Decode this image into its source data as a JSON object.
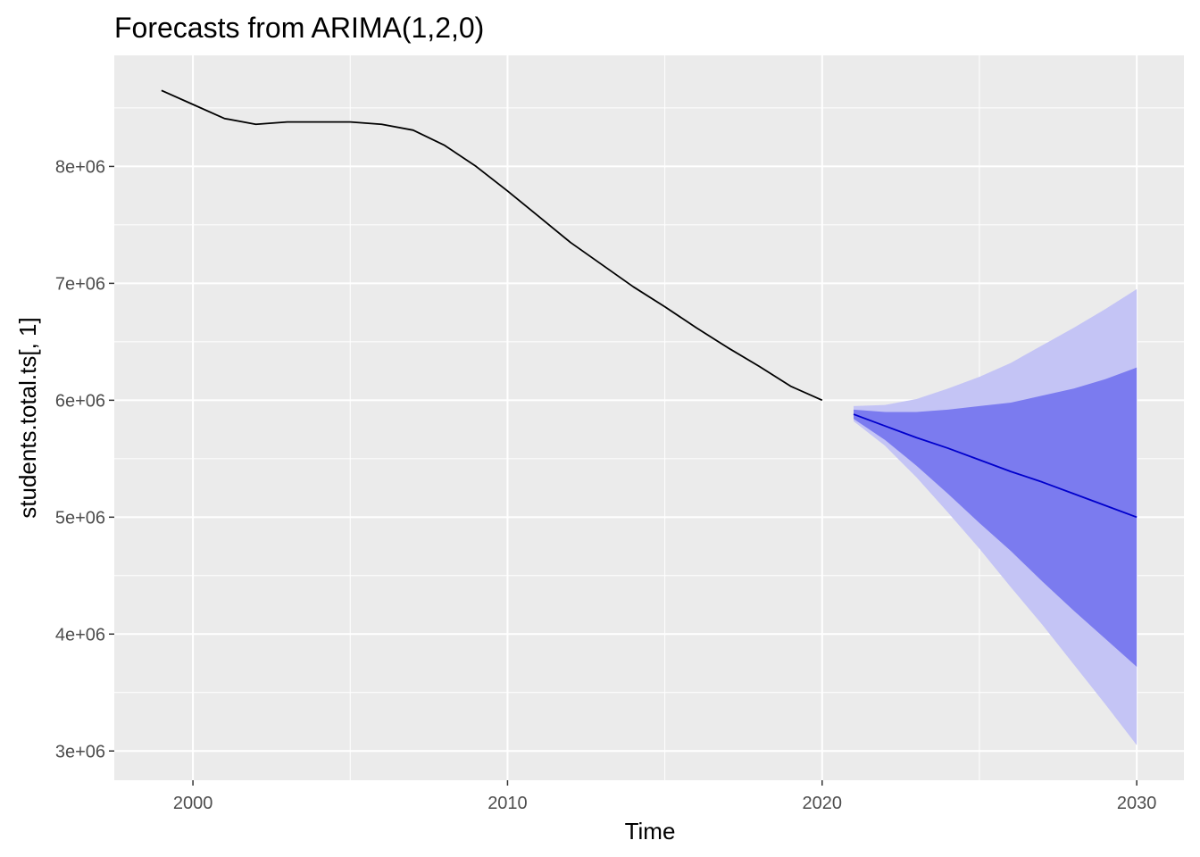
{
  "chart_data": {
    "type": "line",
    "title": "Forecasts from ARIMA(1,2,0)",
    "xlabel": "Time",
    "ylabel": "students.total.ts[, 1]",
    "xlim": [
      1997.5,
      2031.5
    ],
    "ylim": [
      2750000,
      8950000
    ],
    "x_ticks": [
      2000,
      2010,
      2020,
      2030
    ],
    "x_tick_labels": [
      "2000",
      "2010",
      "2020",
      "2030"
    ],
    "x_minor_ticks": [
      2005,
      2015,
      2025
    ],
    "y_ticks": [
      3000000,
      4000000,
      5000000,
      6000000,
      7000000,
      8000000
    ],
    "y_tick_labels": [
      "3e+06",
      "4e+06",
      "5e+06",
      "6e+06",
      "7e+06",
      "8e+06"
    ],
    "y_minor_ticks": [
      3500000,
      4500000,
      5500000,
      6500000,
      7500000,
      8500000
    ],
    "grid": true,
    "legend": "none",
    "colors": {
      "panel": "#ebebeb",
      "grid": "#ffffff",
      "observed": "#000000",
      "forecast": "#0000cc",
      "band80": "#7b7bef",
      "band95": "#c4c4f5"
    },
    "series": [
      {
        "role": "observed",
        "x": [
          1999,
          2000,
          2001,
          2002,
          2003,
          2004,
          2005,
          2006,
          2007,
          2008,
          2009,
          2010,
          2011,
          2012,
          2013,
          2014,
          2015,
          2016,
          2017,
          2018,
          2019,
          2020
        ],
        "values": [
          8650000,
          8530000,
          8410000,
          8360000,
          8380000,
          8380000,
          8380000,
          8360000,
          8310000,
          8180000,
          8000000,
          7790000,
          7570000,
          7350000,
          7160000,
          6970000,
          6800000,
          6620000,
          6450000,
          6290000,
          6120000,
          6000000
        ]
      },
      {
        "role": "forecast",
        "x": [
          2021,
          2022,
          2023,
          2024,
          2025,
          2026,
          2027,
          2028,
          2029,
          2030
        ],
        "values": [
          5880000,
          5780000,
          5680000,
          5590000,
          5490000,
          5390000,
          5300000,
          5200000,
          5100000,
          5000000
        ],
        "lo80": [
          5840000,
          5660000,
          5440000,
          5200000,
          4950000,
          4710000,
          4450000,
          4200000,
          3960000,
          3720000
        ],
        "hi80": [
          5920000,
          5900000,
          5900000,
          5920000,
          5950000,
          5980000,
          6040000,
          6100000,
          6180000,
          6280000
        ],
        "lo95": [
          5820000,
          5610000,
          5340000,
          5040000,
          4730000,
          4400000,
          4080000,
          3740000,
          3400000,
          3050000
        ],
        "hi95": [
          5950000,
          5960000,
          6010000,
          6100000,
          6200000,
          6320000,
          6470000,
          6620000,
          6780000,
          6950000
        ]
      }
    ]
  }
}
